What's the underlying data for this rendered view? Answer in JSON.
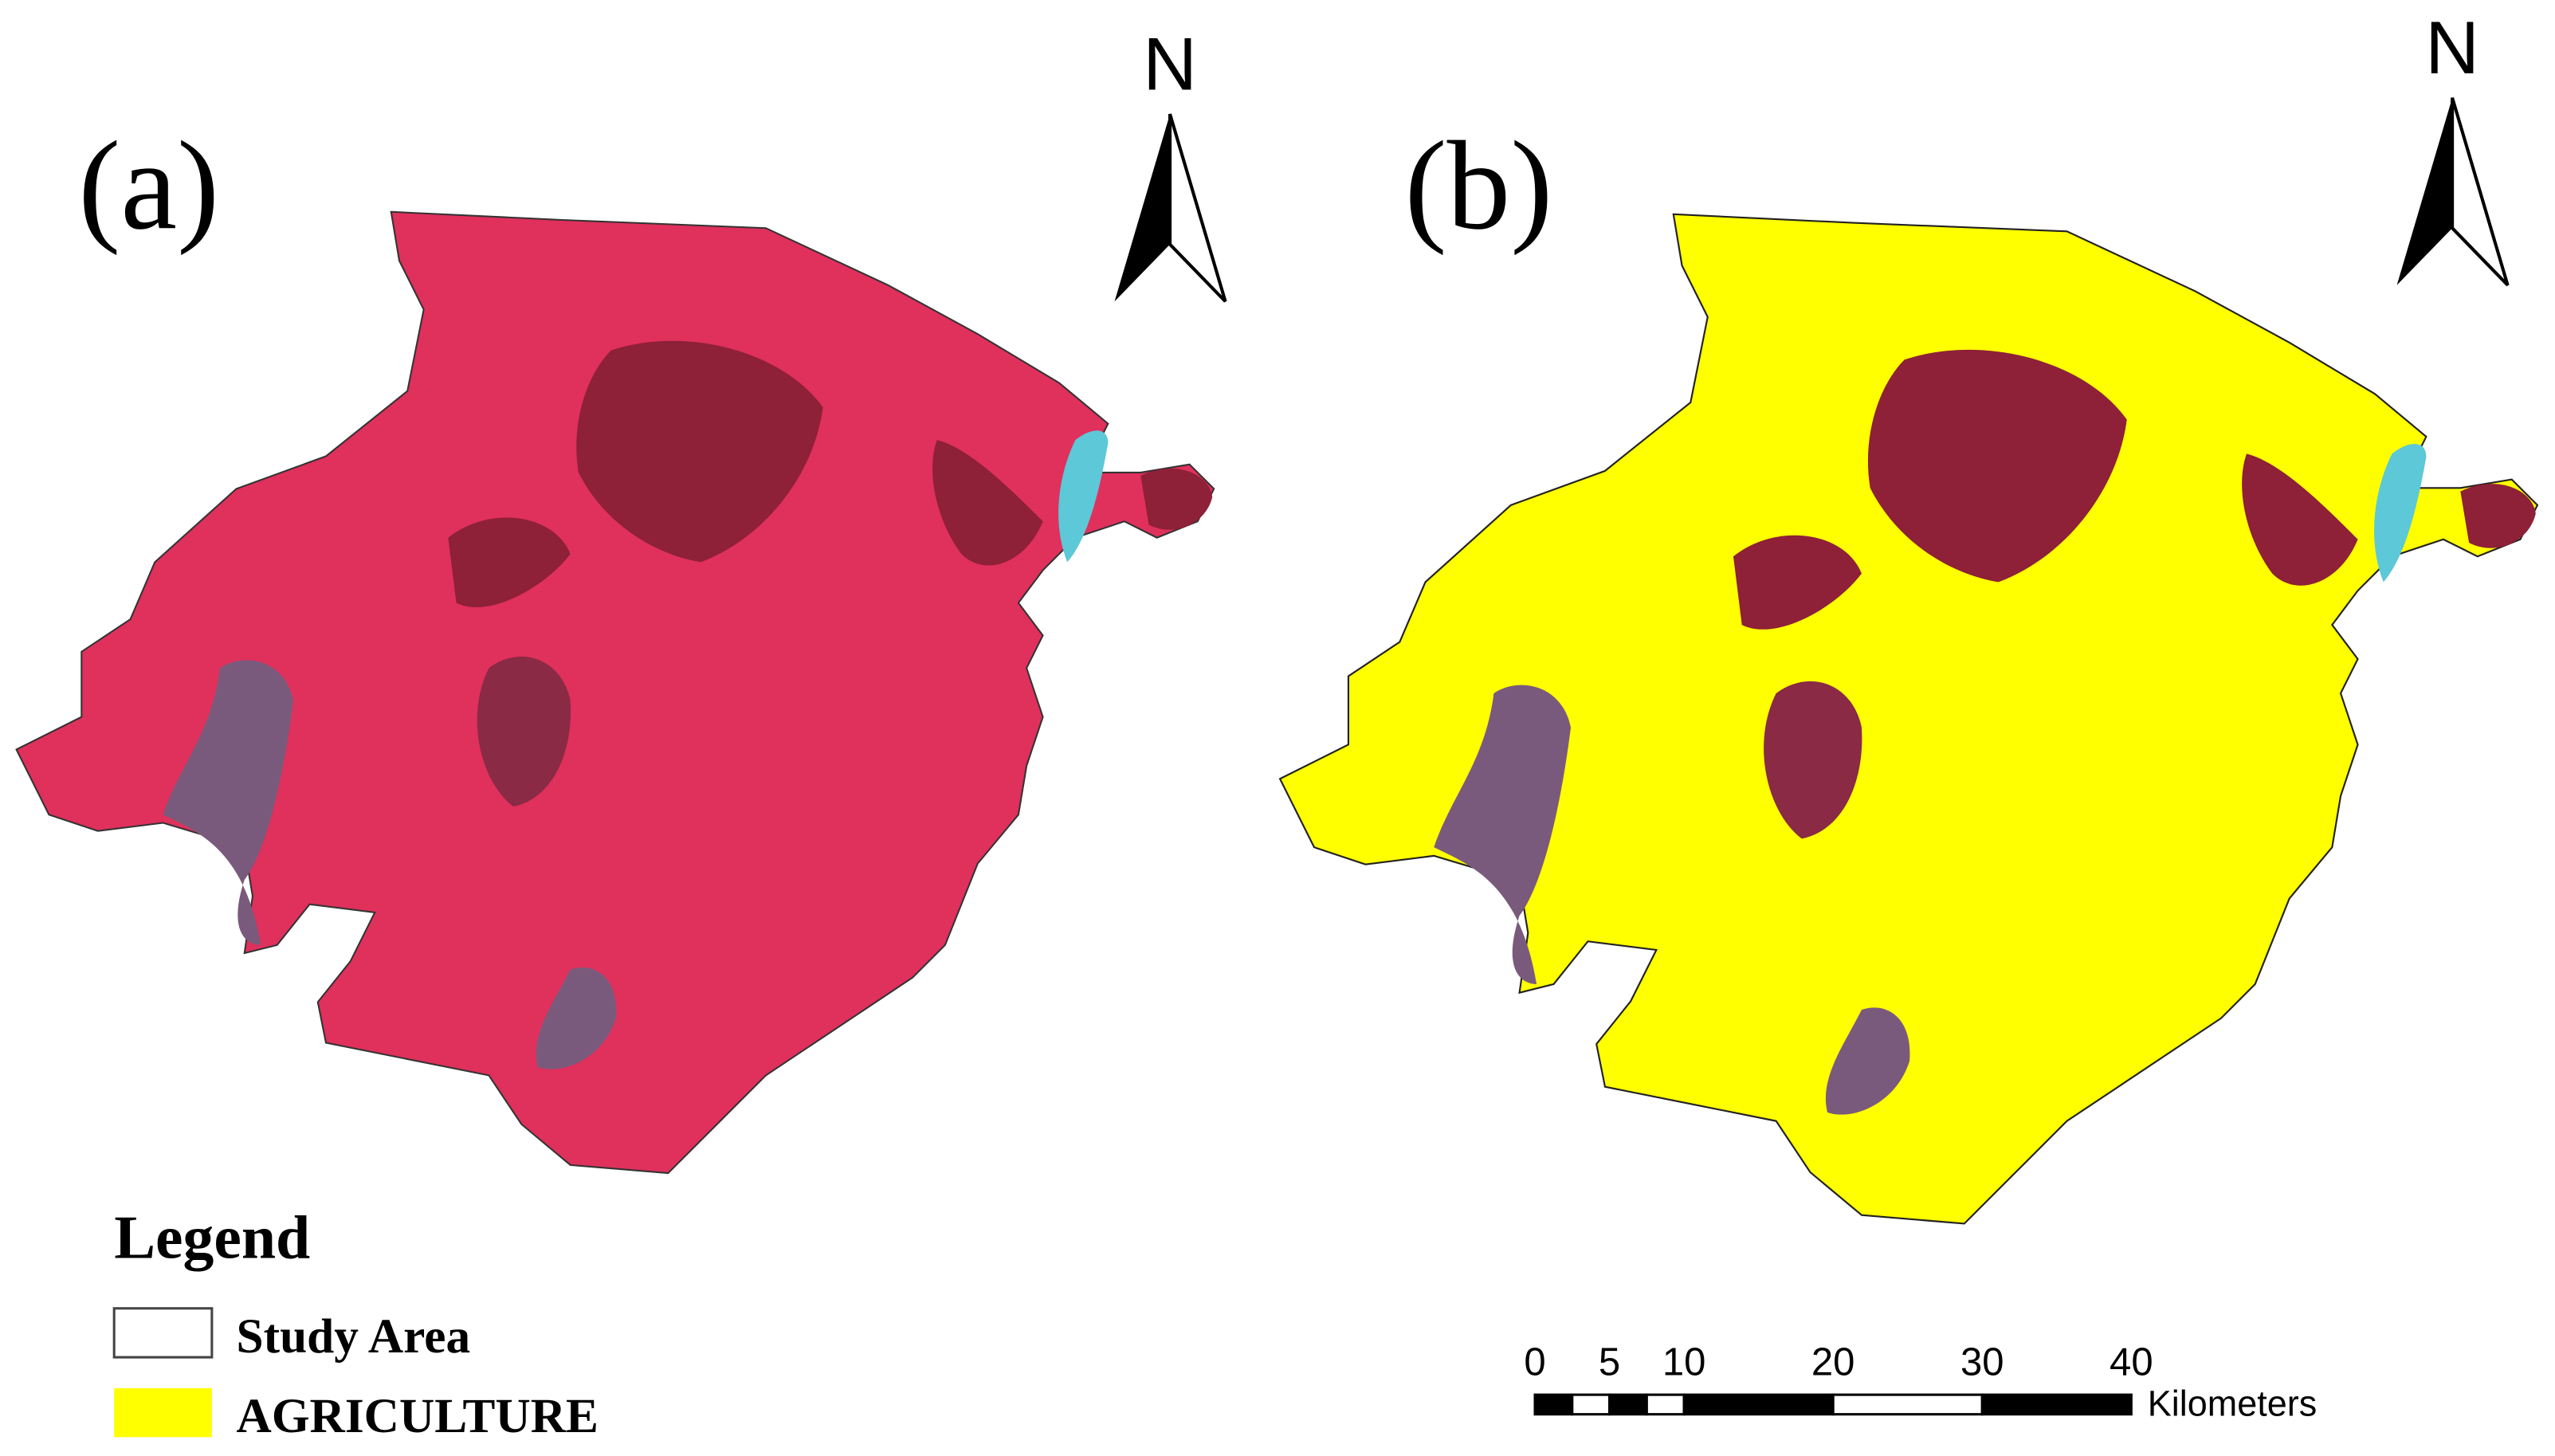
{
  "panels": [
    {
      "label": "(a)"
    },
    {
      "label": "(b)"
    }
  ],
  "north_arrows": [
    "N",
    "N"
  ],
  "legend": {
    "title": "Legend",
    "items": [
      {
        "label": "Study Area",
        "color": "#ffffff"
      },
      {
        "label": "AGRICULTURE",
        "color": "#ffff00"
      }
    ]
  },
  "scale_bar": {
    "ticks": [
      0,
      5,
      10,
      20,
      30,
      40
    ],
    "unit": "Kilometers"
  }
}
